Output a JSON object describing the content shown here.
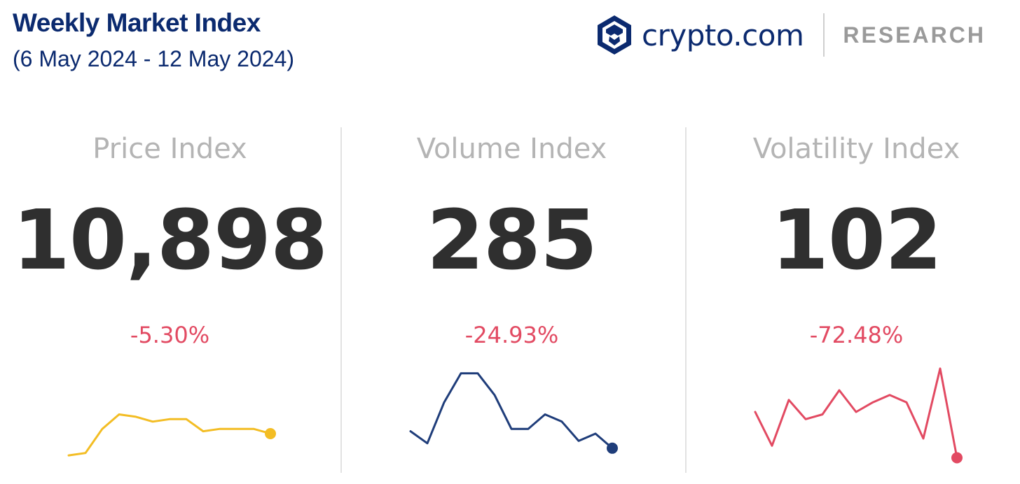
{
  "header": {
    "title": "Weekly Market Index",
    "date_range": "(6 May 2024 - 12 May 2024)"
  },
  "brand": {
    "logo_icon": "crypto-com-lion-shield-icon",
    "name": "crypto.com",
    "section": "RESEARCH",
    "color": "#0b2a6f"
  },
  "chart_data": [
    {
      "type": "line",
      "title": "Price Index",
      "value": "10,898",
      "change": "-5.30%",
      "color": "#f3bd24",
      "values": [
        2,
        3,
        13,
        19,
        18,
        16,
        17,
        17,
        12,
        13,
        13,
        13,
        11
      ]
    },
    {
      "type": "line",
      "title": "Volume Index",
      "value": "285",
      "change": "-24.93%",
      "color": "#1f3d7a",
      "values": [
        12,
        7,
        24,
        36,
        36,
        27,
        13,
        13,
        19,
        16,
        8,
        11,
        5
      ]
    },
    {
      "type": "line",
      "title": "Volatility Index",
      "value": "102",
      "change": "-72.48%",
      "color": "#e24a62",
      "values": [
        20,
        6,
        25,
        17,
        19,
        29,
        20,
        24,
        27,
        24,
        9,
        38,
        1
      ]
    }
  ]
}
